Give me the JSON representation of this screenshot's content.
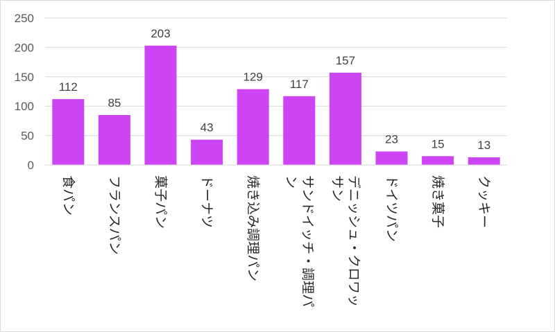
{
  "chart_data": {
    "type": "bar",
    "categories": [
      "食パン",
      "フランスパン",
      "菓子パン",
      "ドーナツ",
      "焼き込み調理パン",
      "サンドイッチ・調理パン",
      "デニッシュ・クロワッサン",
      "ドイツパン",
      "焼き菓子",
      "クッキー"
    ],
    "category_lines": [
      [
        "食パン"
      ],
      [
        "フランスパン"
      ],
      [
        "菓子パン"
      ],
      [
        "ドーナツ"
      ],
      [
        "焼き込み調理パン"
      ],
      [
        "サンドイッチ・調理パ",
        "ン"
      ],
      [
        "デニッシュ・クロワッ",
        "サン"
      ],
      [
        "ドイツパン"
      ],
      [
        "焼き菓子"
      ],
      [
        "クッキー"
      ]
    ],
    "values": [
      112,
      85,
      203,
      43,
      129,
      117,
      157,
      23,
      15,
      13
    ],
    "data_labels": [
      "112",
      "85",
      "203",
      "43",
      "129",
      "117",
      "157",
      "23",
      "15",
      "13"
    ],
    "yticks": [
      "0",
      "50",
      "100",
      "150",
      "200",
      "250"
    ],
    "ylim": [
      0,
      250
    ],
    "bar_color": "#cc44f4",
    "gridlines": true,
    "legend": "none"
  }
}
